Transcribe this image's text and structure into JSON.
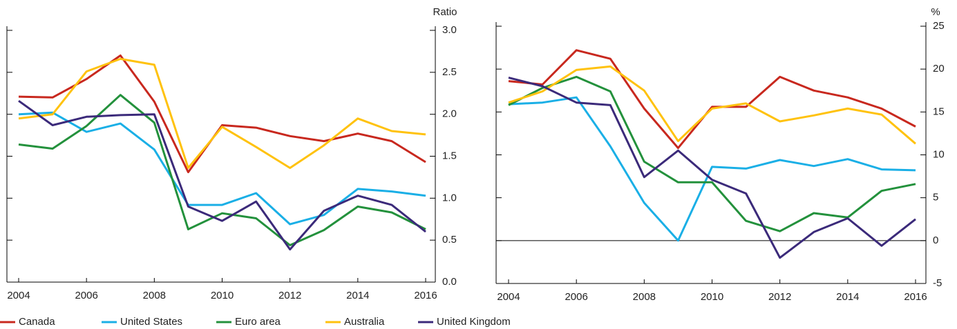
{
  "chart_data": [
    {
      "type": "line",
      "y_label": "Ratio",
      "x": [
        2004,
        2005,
        2006,
        2007,
        2008,
        2009,
        2010,
        2011,
        2012,
        2013,
        2014,
        2015,
        2016
      ],
      "xlim": [
        2004,
        2016
      ],
      "xticks": [
        2004,
        2006,
        2008,
        2010,
        2012,
        2014,
        2016
      ],
      "ylim": [
        0,
        3
      ],
      "yticks": [
        {
          "value": 0,
          "label": "0.0"
        },
        0.5,
        {
          "value": 1,
          "label": "1.0"
        },
        1.5,
        {
          "value": 2,
          "label": "2.0"
        },
        2.5,
        {
          "value": 3,
          "label": "3.0"
        }
      ],
      "zero_line": false,
      "series": [
        {
          "name": "Canada",
          "color": "#c8281e",
          "values": [
            2.21,
            2.2,
            2.42,
            2.7,
            2.15,
            1.31,
            1.87,
            1.84,
            1.74,
            1.68,
            1.77,
            1.68,
            1.43
          ]
        },
        {
          "name": "United States",
          "color": "#1aafe6",
          "values": [
            2.0,
            2.02,
            1.79,
            1.89,
            1.58,
            0.92,
            0.92,
            1.06,
            0.69,
            0.8,
            1.11,
            1.08,
            1.03
          ]
        },
        {
          "name": "Euro area",
          "color": "#23913c",
          "values": [
            1.64,
            1.59,
            1.86,
            2.23,
            1.9,
            0.63,
            0.82,
            0.76,
            0.44,
            0.62,
            0.9,
            0.83,
            0.63
          ]
        },
        {
          "name": "Australia",
          "color": "#ffc20e",
          "values": [
            1.95,
            2.0,
            2.51,
            2.66,
            2.59,
            1.36,
            1.85,
            1.61,
            1.36,
            1.63,
            1.95,
            1.8,
            1.76
          ]
        },
        {
          "name": "United Kingdom",
          "color": "#3b2a7a",
          "values": [
            2.16,
            1.87,
            1.97,
            1.99,
            2.0,
            0.9,
            0.73,
            0.96,
            0.39,
            0.85,
            1.03,
            0.92,
            0.6
          ]
        }
      ]
    },
    {
      "type": "line",
      "y_label": "%",
      "x": [
        2004,
        2005,
        2006,
        2007,
        2008,
        2009,
        2010,
        2011,
        2012,
        2013,
        2014,
        2015,
        2016
      ],
      "xlim": [
        2004,
        2016
      ],
      "xticks": [
        2004,
        2006,
        2008,
        2010,
        2012,
        2014,
        2016
      ],
      "ylim": [
        -5,
        25
      ],
      "yticks": [
        -5,
        0,
        5,
        10,
        15,
        20,
        25
      ],
      "zero_line": true,
      "series": [
        {
          "name": "Canada",
          "color": "#c8281e",
          "values": [
            18.6,
            18.2,
            22.2,
            21.2,
            15.4,
            10.8,
            15.6,
            15.6,
            19.1,
            17.5,
            16.7,
            15.4,
            13.3
          ]
        },
        {
          "name": "United States",
          "color": "#1aafe6",
          "values": [
            15.9,
            16.1,
            16.7,
            11.0,
            4.4,
            0,
            8.6,
            8.4,
            9.4,
            8.7,
            9.5,
            8.3,
            8.2
          ]
        },
        {
          "name": "Euro area",
          "color": "#23913c",
          "values": [
            15.8,
            17.8,
            19.1,
            17.4,
            9.2,
            6.8,
            6.8,
            2.3,
            1.1,
            3.2,
            2.7,
            5.8,
            6.6
          ]
        },
        {
          "name": "Australia",
          "color": "#ffc20e",
          "values": [
            16.1,
            17.4,
            19.9,
            20.3,
            17.5,
            11.6,
            15.4,
            16.0,
            13.9,
            14.6,
            15.4,
            14.7,
            11.3
          ]
        },
        {
          "name": "United Kingdom",
          "color": "#3b2a7a",
          "values": [
            19.0,
            18.0,
            16.1,
            15.8,
            7.4,
            10.5,
            7.1,
            5.5,
            -2.0,
            1.0,
            2.6,
            -0.6,
            2.5
          ]
        }
      ]
    }
  ]
}
